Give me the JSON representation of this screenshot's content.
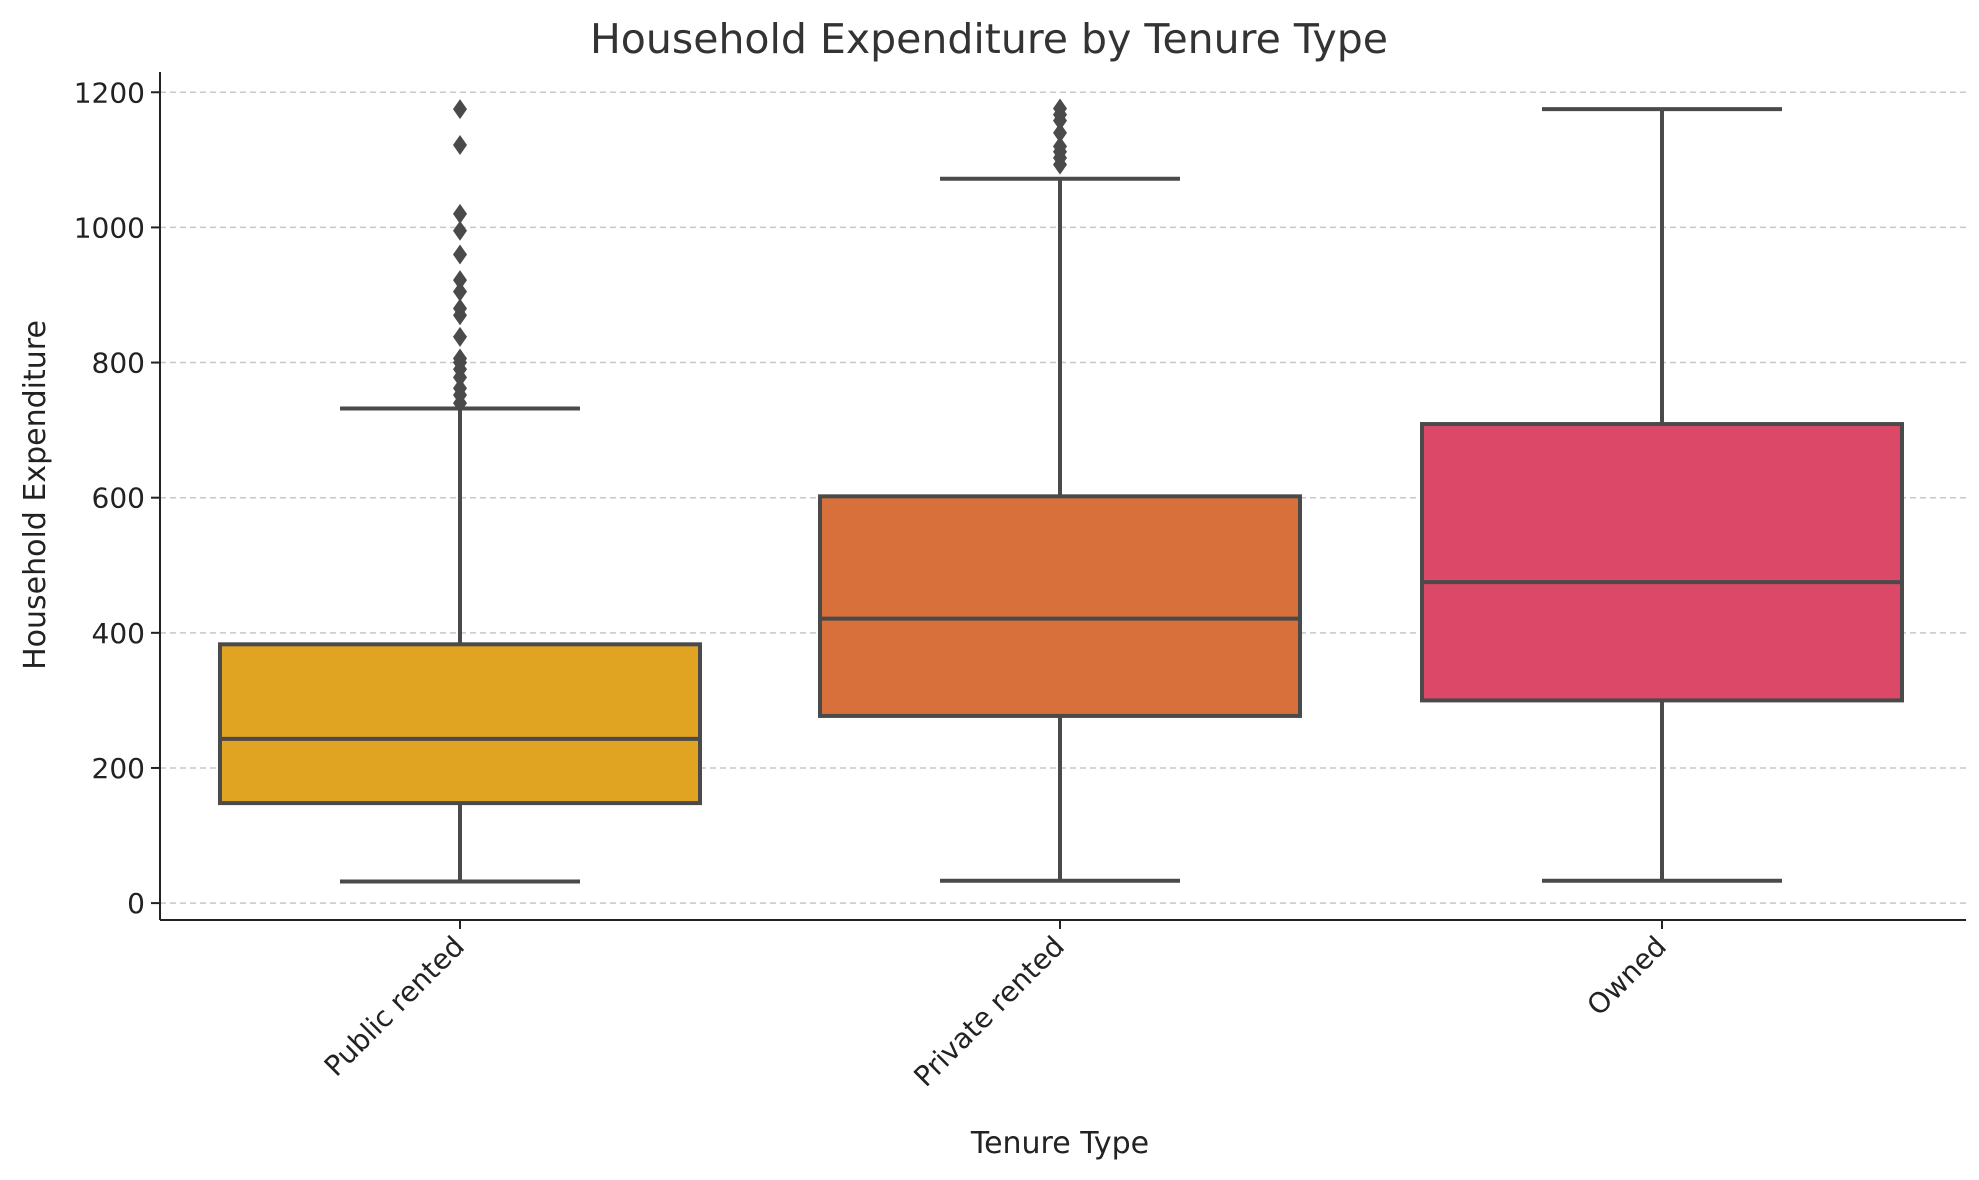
{
  "chart_data": {
    "type": "box",
    "title": "Household Expenditure by Tenure Type",
    "xlabel": "Tenure Type",
    "ylabel": "Household Expenditure",
    "ylim": [
      -25,
      1230
    ],
    "yticks": [
      0,
      200,
      400,
      600,
      800,
      1000,
      1200
    ],
    "grid": "y",
    "categories": [
      "Public rented",
      "Private rented",
      "Owned"
    ],
    "boxes": [
      {
        "name": "Public rented",
        "color": "#e0a322",
        "whisker_low": 32,
        "q1": 148,
        "median": 243,
        "q3": 383,
        "whisker_high": 732,
        "outliers": [
          740,
          752,
          762,
          778,
          790,
          800,
          806,
          838,
          870,
          880,
          905,
          922,
          960,
          995,
          1020,
          1122,
          1175
        ]
      },
      {
        "name": "Private rented",
        "color": "#d8703c",
        "whisker_low": 33,
        "q1": 277,
        "median": 421,
        "q3": 602,
        "whisker_high": 1072,
        "outliers": [
          1093,
          1103,
          1112,
          1120,
          1140,
          1158,
          1167,
          1176
        ]
      },
      {
        "name": "Owned",
        "color": "#dc4867",
        "whisker_low": 33,
        "q1": 300,
        "median": 475,
        "q3": 709,
        "whisker_high": 1175,
        "outliers": []
      }
    ]
  }
}
